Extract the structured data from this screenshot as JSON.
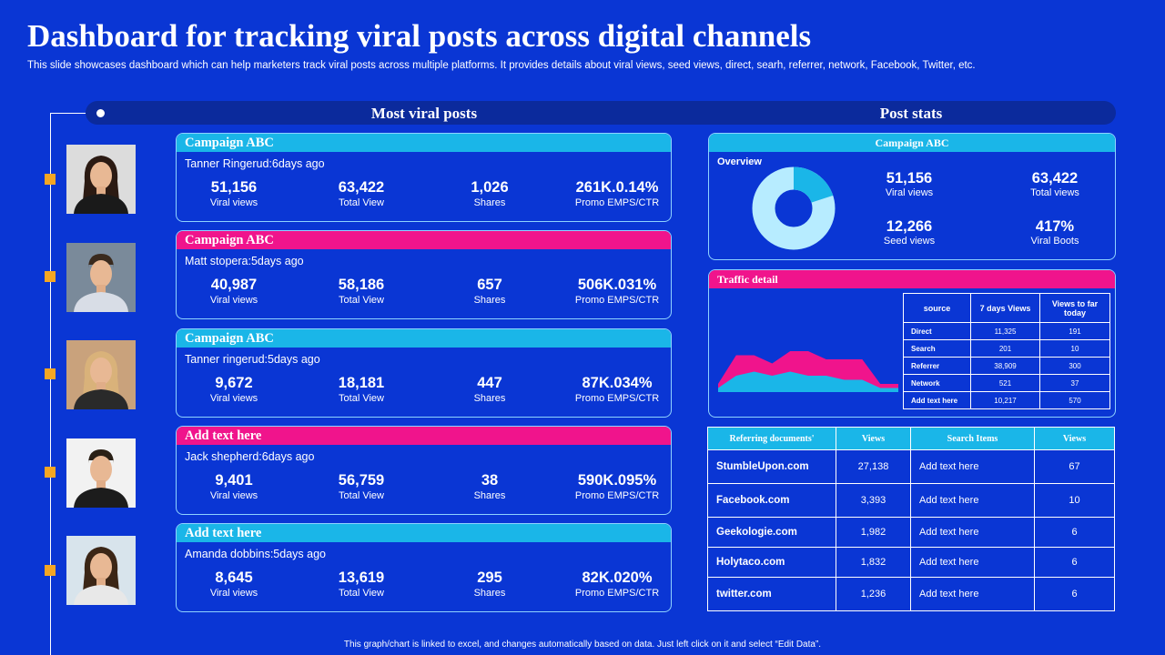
{
  "title": "Dashboard for tracking viral posts across digital channels",
  "subtitle": "This slide showcases dashboard which can help marketers track viral posts across multiple platforms. It provides details about viral views, seed views, direct, searh, referrer, network,  Facebook, Twitter, etc.",
  "sections": {
    "left": "Most viral posts",
    "right": "Post stats"
  },
  "colors": {
    "background": "#0a36d4",
    "cyan": "#1ab6e8",
    "pink": "#f0148c",
    "marker": "#f5a623"
  },
  "stat_labels": {
    "viral": "Viral views",
    "total": "Total View",
    "shares": "Shares",
    "promo": "Promo EMPS/CTR"
  },
  "posts": [
    {
      "header": "Campaign ABC",
      "header_color": "cyan",
      "author": "Tanner Ringerud:6days ago",
      "viral": "51,156",
      "total": "63,422",
      "shares": "1,026",
      "promo": "261K.0.14%",
      "avatar_icon": "woman-avatar-icon"
    },
    {
      "header": "Campaign ABC",
      "header_color": "pink",
      "author": "Matt stopera:5days ago",
      "viral": "40,987",
      "total": "58,186",
      "shares": "657",
      "promo": "506K.031%",
      "avatar_icon": "man-avatar-icon"
    },
    {
      "header": "Campaign ABC",
      "header_color": "cyan",
      "author": "Tanner ringerud:5days ago",
      "viral": "9,672",
      "total": "18,181",
      "shares": "447",
      "promo": "87K.034%",
      "avatar_icon": "woman-avatar-icon"
    },
    {
      "header": "Add text here",
      "header_color": "pink",
      "author": "Jack shepherd:6days ago",
      "viral": "9,401",
      "total": "56,759",
      "shares": "38",
      "promo": "590K.095%",
      "avatar_icon": "man-avatar-icon"
    },
    {
      "header": "Add text here",
      "header_color": "cyan",
      "author": "Amanda dobbins:5days ago",
      "viral": "8,645",
      "total": "13,619",
      "shares": "295",
      "promo": "82K.020%",
      "avatar_icon": "woman-avatar-icon"
    }
  ],
  "overview": {
    "header": "Campaign ABC",
    "label": "Overview",
    "stats": [
      {
        "value": "51,156",
        "label": "Viral views"
      },
      {
        "value": "63,422",
        "label": "Total views"
      },
      {
        "value": "12,266",
        "label": "Seed views"
      },
      {
        "value": "417%",
        "label": "Viral Boots"
      }
    ],
    "donut": {
      "ring_color": "#b7ecff",
      "highlight_color": "#1ab6e8",
      "highlight_fraction": 0.2
    }
  },
  "traffic": {
    "header": "Traffic detail",
    "columns": [
      "source",
      "7 days Views",
      "Views to far today"
    ],
    "rows": [
      [
        "Direct",
        "11,325",
        "191"
      ],
      [
        "Search",
        "201",
        "10"
      ],
      [
        "Referrer",
        "38,909",
        "300"
      ],
      [
        "Network",
        "521",
        "37"
      ],
      [
        "Add text here",
        "10,217",
        "570"
      ]
    ],
    "chart_data": {
      "type": "area",
      "series": [
        {
          "values": [
            2,
            9,
            9,
            7,
            10,
            10,
            8,
            8,
            8,
            2,
            2
          ]
        },
        {
          "values": [
            1,
            4,
            5,
            4,
            5,
            4,
            4,
            3,
            3,
            1,
            1
          ]
        }
      ],
      "colors": [
        "#f0148c",
        "#1ab6e8"
      ],
      "ylim": [
        0,
        12
      ]
    }
  },
  "referring": {
    "columns": [
      "Referring documents'",
      "Views",
      "Search Items",
      "Views"
    ],
    "rows": [
      [
        "StumbleUpon.com",
        "27,138",
        "Add text here",
        "67"
      ],
      [
        "Facebook.com",
        "3,393",
        "Add text here",
        "10"
      ],
      [
        "Geekologie.com",
        "1,982",
        "Add text here",
        "6"
      ],
      [
        "Holytaco.com",
        "1,832",
        "Add text here",
        "6"
      ],
      [
        "twitter.com",
        "1,236",
        "Add text here",
        "6"
      ]
    ]
  },
  "footer": "This graph/chart is linked to excel, and changes automatically based on data. Just left click on it and select “Edit Data”."
}
